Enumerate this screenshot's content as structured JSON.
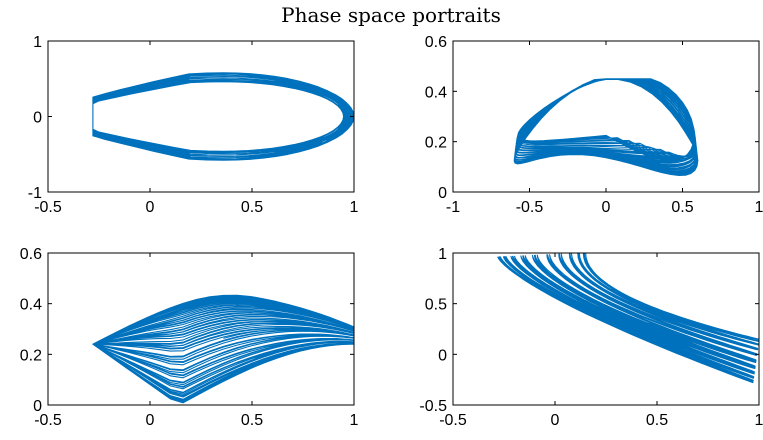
{
  "figure": {
    "title": "Phase space portraits",
    "trace_color": "#0072BD"
  },
  "chart_data": [
    {
      "type": "line",
      "title": "",
      "xlabel": "",
      "ylabel": "",
      "xlim": [
        -0.5,
        1
      ],
      "ylim": [
        -1,
        1
      ],
      "xticks": [
        "-0.5",
        "0",
        "0.5",
        "1"
      ],
      "yticks": [
        "-1",
        "0",
        "1"
      ],
      "grid": false,
      "series": [
        {
          "kind": "limit-cycle-band",
          "x_range": [
            -0.28,
            1.0
          ],
          "y_range": [
            -0.57,
            0.59
          ],
          "inner_hole_x": [
            0.15,
            0.97
          ]
        }
      ]
    },
    {
      "type": "line",
      "title": "",
      "xlabel": "",
      "ylabel": "",
      "xlim": [
        -1,
        1
      ],
      "ylim": [
        0,
        0.6
      ],
      "xticks": [
        "-1",
        "-0.5",
        "0",
        "0.5",
        "1"
      ],
      "yticks": [
        "0",
        "0.2",
        "0.4",
        "0.6"
      ],
      "grid": false,
      "series": [
        {
          "kind": "heart-shaped-orbit",
          "x_range": [
            -0.6,
            0.6
          ],
          "y_range": [
            0.0,
            0.45
          ]
        }
      ]
    },
    {
      "type": "line",
      "title": "",
      "xlabel": "",
      "ylabel": "",
      "xlim": [
        -0.5,
        1
      ],
      "ylim": [
        0,
        0.6
      ],
      "xticks": [
        "-0.5",
        "0",
        "0.5",
        "1"
      ],
      "yticks": [
        "0",
        "0.2",
        "0.4",
        "0.6"
      ],
      "grid": false,
      "series": [
        {
          "kind": "arch-band",
          "x_range": [
            -0.28,
            1.0
          ],
          "y_range": [
            0.0,
            0.45
          ]
        }
      ]
    },
    {
      "type": "line",
      "title": "",
      "xlabel": "",
      "ylabel": "",
      "xlim": [
        -0.5,
        1
      ],
      "ylim": [
        -0.5,
        1
      ],
      "xticks": [
        "-0.5",
        "0",
        "0.5",
        "1"
      ],
      "yticks": [
        "-0.5",
        "0",
        "0.5",
        "1"
      ],
      "grid": false,
      "series": [
        {
          "kind": "curved-band",
          "x_range": [
            -0.28,
            1.0
          ],
          "y_range": [
            -0.28,
            1.0
          ]
        }
      ]
    }
  ]
}
